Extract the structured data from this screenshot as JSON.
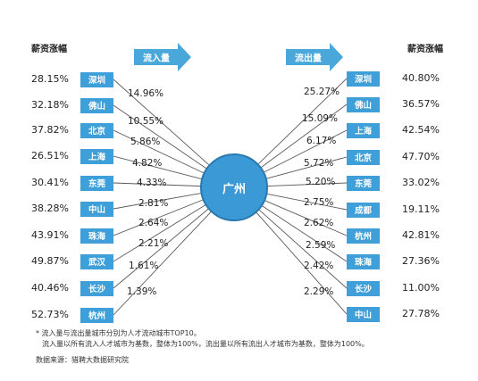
{
  "left": {
    "header": "薪资涨幅",
    "arrow_label": "流入量",
    "rows": [
      {
        "city": "深圳",
        "salary": "28.15%",
        "share": "14.96%"
      },
      {
        "city": "佛山",
        "salary": "32.18%",
        "share": "10.55%"
      },
      {
        "city": "北京",
        "salary": "37.82%",
        "share": "5.86%"
      },
      {
        "city": "上海",
        "salary": "26.51%",
        "share": "4.82%"
      },
      {
        "city": "东莞",
        "salary": "30.41%",
        "share": "4.33%"
      },
      {
        "city": "中山",
        "salary": "38.28%",
        "share": "2.81%"
      },
      {
        "city": "珠海",
        "salary": "43.91%",
        "share": "2.64%"
      },
      {
        "city": "武汉",
        "salary": "49.87%",
        "share": "2.21%"
      },
      {
        "city": "长沙",
        "salary": "40.46%",
        "share": "1.61%"
      },
      {
        "city": "杭州",
        "salary": "52.73%",
        "share": "1.39%"
      }
    ]
  },
  "right": {
    "header": "薪资涨幅",
    "arrow_label": "流出量",
    "rows": [
      {
        "city": "深圳",
        "salary": "40.80%",
        "share": "25.27%"
      },
      {
        "city": "佛山",
        "salary": "36.57%",
        "share": "15.09%"
      },
      {
        "city": "上海",
        "salary": "42.54%",
        "share": "6.17%"
      },
      {
        "city": "北京",
        "salary": "47.70%",
        "share": "5.72%"
      },
      {
        "city": "东莞",
        "salary": "33.02%",
        "share": "5.20%"
      },
      {
        "city": "成都",
        "salary": "19.11%",
        "share": "2.75%"
      },
      {
        "city": "杭州",
        "salary": "42.81%",
        "share": "2.62%"
      },
      {
        "city": "珠海",
        "salary": "27.36%",
        "share": "2.59%"
      },
      {
        "city": "长沙",
        "salary": "11.00%",
        "share": "2.42%"
      },
      {
        "city": "中山",
        "salary": "27.78%",
        "share": "2.29%"
      }
    ]
  },
  "center": {
    "label": "广州"
  },
  "notes": {
    "line1": "* 流入量与流出量城市分别为人才流动城市TOP10。",
    "line2": "流入量以所有流入人才城市为基数，整体为100%，流出量以所有流出人才城市为基数，整体为100%。",
    "source": "数据来源：猎聘大数据研究院"
  },
  "colors": {
    "box": "#3f9fd8",
    "circle": "#3b9ad6",
    "circle_border": "#2a78b0",
    "arrow": "#4aa7da",
    "line": "#5a5a5a"
  }
}
